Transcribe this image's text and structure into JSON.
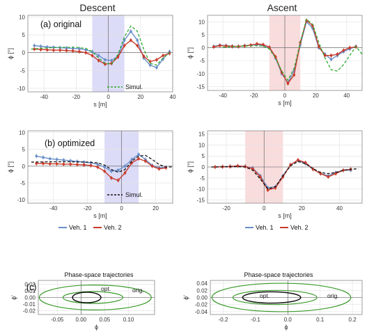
{
  "titles": {
    "left": "Descent",
    "right": "Ascent"
  },
  "panel_labels": {
    "a": "(a) original",
    "b": "(b) optimized",
    "c": "(c)"
  },
  "legend": {
    "simul": "Simul.",
    "veh1": "Veh. 1",
    "veh2": "Veh. 2"
  },
  "phase_titles": {
    "left": "Phase-space trajectories",
    "right": "Phase-space trajectories"
  },
  "phase_labels": {
    "opt": "opt.",
    "orig": "orig."
  },
  "colors": {
    "veh1": "#6a8fc9",
    "veh2": "#c83a2a",
    "sim_orig": "#2eaa2e",
    "sim_opt": "#111111",
    "descent_band": "#dcdcf8",
    "ascent_band": "#f9dcdc",
    "phase_orig": "#3a9a2a",
    "phase_opt": "#111111"
  },
  "chart_data": [
    {
      "id": "a-descent",
      "type": "line",
      "xlabel": "s [m]",
      "ylabel": "ϕ [°]",
      "xlim": [
        -50,
        40
      ],
      "ylim": [
        -11,
        10.5
      ],
      "xticks": [
        -40,
        -20,
        0,
        20,
        40
      ],
      "yticks": [
        -10,
        -5,
        0,
        5,
        10
      ],
      "band": [
        -10,
        10
      ],
      "band_color": "descent_band",
      "series": [
        {
          "name": "Veh. 1",
          "color": "veh1",
          "markers": true,
          "x": [
            -46,
            -42,
            -38,
            -34,
            -30,
            -26,
            -22,
            -18,
            -14,
            -10,
            -6,
            -2,
            2,
            6,
            10,
            14,
            18,
            22,
            26,
            30,
            34,
            38
          ],
          "y": [
            2.0,
            1.8,
            1.6,
            1.5,
            1.4,
            1.3,
            1.2,
            1.1,
            0.8,
            0.3,
            -0.8,
            -2.0,
            -2.2,
            -1.0,
            3.5,
            6.0,
            3.5,
            -1.5,
            -3.5,
            -4.2,
            -1.8,
            0.3
          ]
        },
        {
          "name": "Veh. 2",
          "color": "veh2",
          "markers": true,
          "x": [
            -46,
            -42,
            -38,
            -34,
            -30,
            -26,
            -22,
            -18,
            -14,
            -10,
            -6,
            -2,
            2,
            6,
            10,
            14,
            18,
            22,
            26,
            30,
            34,
            38
          ],
          "y": [
            1.0,
            0.9,
            0.8,
            0.7,
            0.7,
            0.6,
            0.5,
            0.3,
            0.0,
            -0.8,
            -2.2,
            -3.2,
            -3.0,
            -1.2,
            2.0,
            3.5,
            2.0,
            -1.0,
            -2.5,
            -2.0,
            -0.8,
            -0.2
          ]
        },
        {
          "name": "Simul.",
          "color": "sim_orig",
          "dashed": true,
          "label_in_legend": true,
          "x": [
            -48,
            -40,
            -30,
            -20,
            -14,
            -10,
            -6,
            -2,
            2,
            6,
            10,
            14,
            18,
            22,
            26,
            30,
            34,
            38
          ],
          "y": [
            1.0,
            1.3,
            1.5,
            1.5,
            1.2,
            0.3,
            -1.5,
            -3.0,
            -3.2,
            -0.5,
            4.5,
            7.5,
            6.0,
            1.0,
            -3.0,
            -3.5,
            -1.5,
            0.0
          ]
        }
      ]
    },
    {
      "id": "a-ascent",
      "type": "line",
      "xlabel": "s [m]",
      "ylabel": "ϕ [°]",
      "xlim": [
        -50,
        50
      ],
      "ylim": [
        -16.5,
        12.5
      ],
      "xticks": [
        -40,
        -20,
        0,
        20,
        40
      ],
      "yticks": [
        -15,
        -10,
        -5,
        0,
        5,
        10
      ],
      "band": [
        -10,
        10
      ],
      "band_color": "ascent_band",
      "series": [
        {
          "name": "Veh. 1",
          "color": "veh1",
          "markers": true,
          "x": [
            -46,
            -42,
            -38,
            -34,
            -30,
            -26,
            -22,
            -18,
            -14,
            -10,
            -6,
            -2,
            2,
            6,
            10,
            14,
            18,
            22,
            26,
            30,
            34,
            38,
            42,
            46
          ],
          "y": [
            0.5,
            1.0,
            0.8,
            0.6,
            0.5,
            0.8,
            1.0,
            1.2,
            1.0,
            0.0,
            -4.0,
            -10.0,
            -13.5,
            -9.0,
            1.0,
            10.0,
            7.5,
            0.0,
            -2.5,
            -4.5,
            -3.0,
            -1.5,
            -0.5,
            0.5
          ]
        },
        {
          "name": "Veh. 2",
          "color": "veh2",
          "markers": true,
          "x": [
            -46,
            -42,
            -38,
            -34,
            -30,
            -26,
            -22,
            -18,
            -14,
            -10,
            -6,
            -2,
            2,
            6,
            10,
            14,
            18,
            22,
            26,
            30,
            34,
            38,
            42,
            46
          ],
          "y": [
            0.3,
            0.8,
            0.7,
            0.5,
            0.5,
            0.7,
            1.0,
            1.5,
            1.2,
            0.2,
            -3.5,
            -9.5,
            -13.8,
            -10.5,
            2.0,
            10.5,
            8.5,
            0.5,
            -3.0,
            -3.0,
            -2.5,
            -1.0,
            0.0,
            0.3
          ]
        },
        {
          "name": "Simul.",
          "color": "sim_orig",
          "dashed": true,
          "x": [
            -40,
            -30,
            -20,
            -14,
            -10,
            -6,
            -2,
            2,
            6,
            10,
            14,
            18,
            22,
            26,
            30,
            34,
            38,
            42,
            46,
            50
          ],
          "y": [
            0.2,
            0.5,
            0.8,
            0.6,
            -0.5,
            -4.0,
            -9.0,
            -12.5,
            -8.0,
            2.0,
            11.0,
            9.0,
            2.0,
            -4.0,
            -8.5,
            -9.0,
            -6.5,
            -3.0,
            0.5,
            -2.5
          ]
        }
      ]
    },
    {
      "id": "b-descent",
      "type": "line",
      "xlabel": "s [m]",
      "ylabel": "ϕ [°]",
      "xlim": [
        -55,
        30
      ],
      "ylim": [
        -11,
        10.5
      ],
      "xticks": [
        -40,
        -20,
        0,
        20
      ],
      "yticks": [
        -10,
        -5,
        0,
        5,
        10
      ],
      "band": [
        -10,
        10
      ],
      "band_color": "descent_band",
      "series": [
        {
          "name": "Veh. 1",
          "color": "veh1",
          "markers": true,
          "x": [
            -50,
            -46,
            -42,
            -38,
            -34,
            -30,
            -26,
            -22,
            -18,
            -14,
            -10,
            -6,
            -2,
            2,
            6,
            10,
            14,
            18,
            22,
            26
          ],
          "y": [
            3.0,
            2.6,
            2.2,
            2.0,
            1.8,
            1.6,
            1.4,
            1.2,
            1.0,
            0.5,
            -0.3,
            -1.5,
            -1.2,
            0.0,
            2.0,
            3.5,
            2.0,
            0.2,
            -0.5,
            -0.3
          ]
        },
        {
          "name": "Veh. 2",
          "color": "veh2",
          "markers": true,
          "x": [
            -50,
            -46,
            -42,
            -38,
            -34,
            -30,
            -26,
            -22,
            -18,
            -14,
            -10,
            -6,
            -2,
            2,
            6,
            10,
            14,
            18,
            22,
            26
          ],
          "y": [
            0.8,
            0.8,
            0.7,
            0.7,
            0.6,
            0.6,
            0.5,
            0.4,
            0.2,
            -0.3,
            -1.5,
            -3.5,
            -4.2,
            -2.0,
            1.0,
            2.2,
            1.5,
            0.0,
            -0.8,
            -0.5
          ]
        },
        {
          "name": "Simul.",
          "color": "sim_opt",
          "dashed": true,
          "label_in_legend": true,
          "x": [
            -53,
            -40,
            -30,
            -20,
            -14,
            -10,
            -6,
            -2,
            2,
            6,
            10,
            14,
            18,
            22,
            26,
            30
          ],
          "y": [
            1.2,
            1.3,
            1.3,
            1.2,
            1.0,
            0.3,
            -1.0,
            -1.8,
            -1.0,
            1.5,
            3.0,
            3.2,
            2.0,
            0.5,
            -0.3,
            -0.2
          ]
        }
      ]
    },
    {
      "id": "b-ascent",
      "type": "line",
      "xlabel": "s [m]",
      "ylabel": "ϕ [°]",
      "xlim": [
        -30,
        52
      ],
      "ylim": [
        -16.5,
        16.5
      ],
      "xticks": [
        -20,
        0,
        20,
        40
      ],
      "yticks": [
        -15,
        -10,
        -5,
        0,
        5,
        10,
        15
      ],
      "band": [
        -10,
        10
      ],
      "band_color": "ascent_band",
      "series": [
        {
          "name": "Veh. 1",
          "color": "veh1",
          "markers": true,
          "x": [
            -26,
            -22,
            -18,
            -14,
            -10,
            -6,
            -2,
            2,
            6,
            10,
            14,
            18,
            22,
            26,
            30,
            34,
            38,
            42,
            46
          ],
          "y": [
            0.0,
            0.2,
            0.3,
            0.5,
            0.3,
            -0.5,
            -4.0,
            -9.5,
            -9.0,
            -4.0,
            1.0,
            3.0,
            1.5,
            -1.0,
            -3.0,
            -4.0,
            -2.5,
            -1.5,
            -1.5
          ]
        },
        {
          "name": "Veh. 2",
          "color": "veh2",
          "markers": true,
          "x": [
            -26,
            -22,
            -18,
            -14,
            -10,
            -6,
            -2,
            2,
            6,
            10,
            14,
            18,
            22,
            26,
            30,
            34,
            38,
            42,
            46
          ],
          "y": [
            0.0,
            0.1,
            0.2,
            0.5,
            0.2,
            -0.8,
            -4.5,
            -10.5,
            -9.5,
            -4.5,
            1.0,
            3.2,
            2.0,
            -1.0,
            -3.0,
            -4.5,
            -3.0,
            -1.5,
            -1.0
          ]
        },
        {
          "name": "Simul.",
          "color": "sim_opt",
          "dashed": true,
          "x": [
            -28,
            -20,
            -14,
            -10,
            -6,
            -2,
            2,
            6,
            10,
            14,
            18,
            22,
            26,
            30,
            34,
            38,
            42,
            46,
            50
          ],
          "y": [
            0.0,
            0.1,
            0.2,
            0.0,
            -1.5,
            -5.5,
            -10.0,
            -9.0,
            -4.0,
            0.5,
            2.5,
            1.5,
            -0.8,
            -2.5,
            -3.0,
            -2.5,
            -1.5,
            -1.0,
            -0.8
          ]
        }
      ]
    },
    {
      "id": "c-descent",
      "type": "line",
      "title": "Phase-space trajectories",
      "xlabel": "ϕ",
      "ylabel": "ϕ'",
      "xlim": [
        -0.09,
        0.155
      ],
      "ylim": [
        -0.026,
        0.026
      ],
      "xticks": [
        -0.05,
        0.0,
        0.05,
        0.1
      ],
      "xtick_labels": [
        "-0.05",
        "0.00",
        "0.05",
        "0.10"
      ],
      "yticks": [
        -0.02,
        -0.01,
        0.0,
        0.01,
        0.02
      ],
      "ytick_labels": [
        "-0.02",
        "-0.01",
        "0.00",
        "0.01",
        "0.02"
      ],
      "orbits": [
        {
          "name": "orig.",
          "color": "phase_orig",
          "cx": 0.03,
          "cy": 0.0,
          "rx": 0.118,
          "ry": 0.019
        },
        {
          "name": "orig.",
          "color": "phase_orig",
          "cx": 0.025,
          "cy": 0.0,
          "rx": 0.063,
          "ry": 0.009
        },
        {
          "name": "opt.",
          "color": "phase_opt",
          "cx": 0.012,
          "cy": 0.0,
          "rx": 0.03,
          "ry": 0.008
        }
      ]
    },
    {
      "id": "c-ascent",
      "type": "line",
      "title": "Phase-space trajectories",
      "xlabel": "ϕ",
      "ylabel": "ϕ'",
      "xlim": [
        -0.24,
        0.23
      ],
      "ylim": [
        -0.048,
        0.048
      ],
      "xticks": [
        -0.2,
        -0.1,
        0.0,
        0.1,
        0.2
      ],
      "xtick_labels": [
        "-0.2",
        "-0.1",
        "0.0",
        "0.1",
        "0.2"
      ],
      "yticks": [
        -0.04,
        -0.02,
        0.0,
        0.02,
        0.04
      ],
      "ytick_labels": [
        "-0.04",
        "-0.02",
        "0.00",
        "0.02",
        "0.04"
      ],
      "orbits": [
        {
          "name": "orig.",
          "color": "phase_orig",
          "cx": -0.02,
          "cy": 0.0,
          "rx": 0.215,
          "ry": 0.04
        },
        {
          "name": "orig.",
          "color": "phase_orig",
          "cx": -0.04,
          "cy": 0.0,
          "rx": 0.13,
          "ry": 0.02
        },
        {
          "name": "opt.",
          "color": "phase_opt",
          "cx": -0.05,
          "cy": 0.0,
          "rx": 0.09,
          "ry": 0.016
        }
      ]
    }
  ]
}
